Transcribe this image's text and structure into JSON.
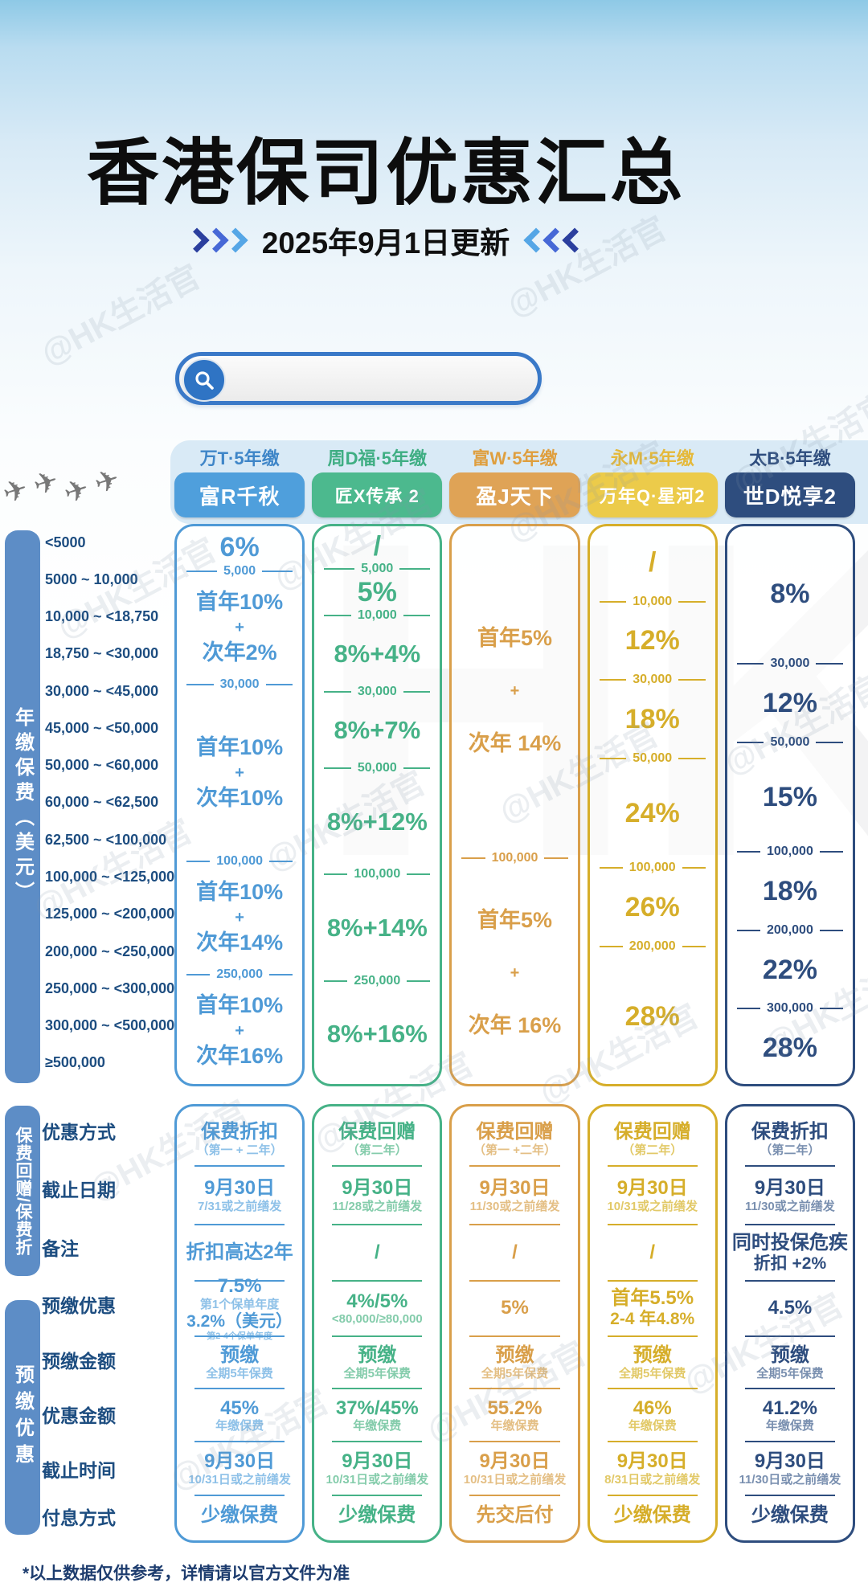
{
  "title": "香港保司优惠汇总",
  "subtitle": "2025年9月1日更新",
  "search": {
    "value": "",
    "placeholder": ""
  },
  "footer": "*以上数据仅供参考，详情请以官方文件为准",
  "watermark": "@HK生活官",
  "watermark_big": "HK",
  "icons": {
    "plane": "✈",
    "search": "magnifier"
  },
  "decor_colors": {
    "chevrons": [
      "#2b3f9e",
      "#4668d6",
      "#55a6e6"
    ],
    "search_border": "#3a79c8",
    "sidebar_bar": "#5d8dc6",
    "header_band": "#d9eaf6"
  },
  "sidebar": [
    {
      "label": "年缴保费（美元）"
    },
    {
      "label": "保费回赠/保费折"
    },
    {
      "label": "预缴优惠"
    }
  ],
  "premium_row_labels": [
    "<5000",
    "5000 ~ 10,000",
    "10,000 ~ <18,750",
    "18,750 ~ <30,000",
    "30,000 ~ <45,000",
    "45,000 ~ <50,000",
    "50,000 ~ <60,000",
    "60,000 ~ <62,500",
    "62,500 ~ <100,000",
    "100,000 ~ <125,000",
    "125,000 ~ <200,000",
    "200,000 ~ <250,000",
    "250,000 ~ <300,000",
    "300,000 ~ <500,000",
    "≥500,000"
  ],
  "detail_row_labels": [
    "优惠方式",
    "截止日期",
    "备注",
    "预缴优惠",
    "预缴金额",
    "优惠金额",
    "截止时间",
    "付息方式"
  ],
  "columns": [
    {
      "company": "万T·5年缴",
      "product": "富R千秋",
      "colors": {
        "company": "#3f86c8",
        "badge": "#4f9fdc",
        "accent": "#4f9ad6",
        "light": "#8ec1e8"
      },
      "premium_segments": [
        {
          "t": "v",
          "lines": [
            "6%"
          ],
          "f": 1
        },
        {
          "t": "d",
          "label": "5,000"
        },
        {
          "t": "v",
          "lines": [
            "首年10%",
            "+",
            "次年2%"
          ],
          "f": 3
        },
        {
          "t": "d",
          "label": "30,000"
        },
        {
          "t": "v",
          "lines": [
            "首年10%",
            "+",
            "次年10%"
          ],
          "f": 5
        },
        {
          "t": "d",
          "label": "100,000"
        },
        {
          "t": "v",
          "lines": [
            "首年10%",
            "+",
            "次年14%"
          ],
          "f": 3
        },
        {
          "t": "d",
          "label": "250,000"
        },
        {
          "t": "v",
          "lines": [
            "首年10%",
            "+",
            "次年16%"
          ],
          "f": 3
        }
      ],
      "details": [
        {
          "main": "保费折扣",
          "sub": "（第一 + 二年）"
        },
        {
          "main": "9月30日",
          "sub": "7/31或之前缮发"
        },
        {
          "main": "折扣高达2年"
        },
        {
          "main": "7.5%",
          "sub": "第1个保单年度",
          "main2": "3.2%（美元）",
          "sub2": "第2-4个保单年度"
        },
        {
          "main": "预缴",
          "sub": "全期5年保费"
        },
        {
          "main": "45%",
          "sub": "年缴保费"
        },
        {
          "main": "9月30日",
          "sub": "10/31日或之前缮发"
        },
        {
          "main": "少缴保费"
        }
      ]
    },
    {
      "company": "周D福·5年缴",
      "product": "匠X传承 2",
      "colors": {
        "company": "#3fae83",
        "badge": "#4cb98e",
        "accent": "#46b287",
        "light": "#84ccab"
      },
      "premium_segments": [
        {
          "t": "v",
          "lines": [
            "/"
          ],
          "f": 1
        },
        {
          "t": "d",
          "label": "5,000"
        },
        {
          "t": "v",
          "lines": [
            "5%"
          ],
          "f": 1
        },
        {
          "t": "d",
          "label": "10,000"
        },
        {
          "t": "v",
          "lines": [
            "8%+4%"
          ],
          "f": 2
        },
        {
          "t": "d",
          "label": "30,000"
        },
        {
          "t": "v",
          "lines": [
            "8%+7%"
          ],
          "f": 2
        },
        {
          "t": "d",
          "label": "50,000"
        },
        {
          "t": "v",
          "lines": [
            "8%+12%"
          ],
          "f": 3
        },
        {
          "t": "d",
          "label": "100,000"
        },
        {
          "t": "v",
          "lines": [
            "8%+14%"
          ],
          "f": 3
        },
        {
          "t": "d",
          "label": "250,000"
        },
        {
          "t": "v",
          "lines": [
            "8%+16%"
          ],
          "f": 3
        }
      ],
      "details": [
        {
          "main": "保费回赠",
          "sub": "（第二年）"
        },
        {
          "main": "9月30日",
          "sub": "11/28或之前缮发"
        },
        {
          "main": "/"
        },
        {
          "main": "4%/5%",
          "sub": "<80,000/≥80,000"
        },
        {
          "main": "预缴",
          "sub": "全期5年保费"
        },
        {
          "main": "37%/45%",
          "sub": "年缴保费"
        },
        {
          "main": "9月30日",
          "sub": "10/31日或之前缮发"
        },
        {
          "main": "少缴保费"
        }
      ]
    },
    {
      "company": "富W·5年缴",
      "product": "盈J天下",
      "colors": {
        "company": "#df9f3f",
        "badge": "#dfa356",
        "accent": "#d99f4a",
        "light": "#e4bf85"
      },
      "premium_segments": [
        {
          "t": "v",
          "lines": [
            "首年5%",
            "+",
            "次年 14%"
          ],
          "f": 9
        },
        {
          "t": "d",
          "label": "100,000"
        },
        {
          "t": "v",
          "lines": [
            "首年5%",
            "+",
            "次年 16%"
          ],
          "f": 6
        }
      ],
      "details": [
        {
          "main": "保费回赠",
          "sub": "（第一 +二年）"
        },
        {
          "main": "9月30日",
          "sub": "11/30或之前缮发"
        },
        {
          "main": "/"
        },
        {
          "main": "5%"
        },
        {
          "main": "预缴",
          "sub": "全期5年保费"
        },
        {
          "main": "55.2%",
          "sub": "年缴保费"
        },
        {
          "main": "9月30日",
          "sub": "10/31日或之前缮发"
        },
        {
          "main": "先交后付"
        }
      ]
    },
    {
      "company": "永M·5年缴",
      "product": "万年Q·星河2",
      "colors": {
        "company": "#e5b93a",
        "badge": "#eccb4a",
        "accent": "#d6ae2a",
        "light": "#e2c968"
      },
      "premium_segments": [
        {
          "t": "v",
          "lines": [
            "/"
          ],
          "f": 2
        },
        {
          "t": "d",
          "label": "10,000"
        },
        {
          "t": "v",
          "lines": [
            "12%"
          ],
          "f": 2
        },
        {
          "t": "d",
          "label": "30,000"
        },
        {
          "t": "v",
          "lines": [
            "18%"
          ],
          "f": 2
        },
        {
          "t": "d",
          "label": "50,000"
        },
        {
          "t": "v",
          "lines": [
            "24%"
          ],
          "f": 3
        },
        {
          "t": "d",
          "label": "100,000"
        },
        {
          "t": "v",
          "lines": [
            "26%"
          ],
          "f": 2
        },
        {
          "t": "d",
          "label": "200,000"
        },
        {
          "t": "v",
          "lines": [
            "28%"
          ],
          "f": 4
        }
      ],
      "details": [
        {
          "main": "保费回赠",
          "sub": "（第二年）"
        },
        {
          "main": "9月30日",
          "sub": "10/31或之前缮发"
        },
        {
          "main": "/"
        },
        {
          "main": "首年5.5%",
          "main2": "2-4 年4.8%"
        },
        {
          "main": "预缴",
          "sub": "全期5年保费"
        },
        {
          "main": "46%",
          "sub": "年缴保费"
        },
        {
          "main": "9月30日",
          "sub": "8/31日或之前缮发"
        },
        {
          "main": "少缴保费"
        }
      ]
    },
    {
      "company": "太B·5年缴",
      "product": "世D悦享2",
      "colors": {
        "company": "#2e4d7e",
        "badge": "#2e4d7e",
        "accent": "#2e4d7e",
        "light": "#7a90b0"
      },
      "premium_segments": [
        {
          "t": "v",
          "lines": [
            "8%"
          ],
          "f": 4
        },
        {
          "t": "d",
          "label": "30,000"
        },
        {
          "t": "v",
          "lines": [
            "12%"
          ],
          "f": 2
        },
        {
          "t": "d",
          "label": "50,000"
        },
        {
          "t": "v",
          "lines": [
            "15%"
          ],
          "f": 3
        },
        {
          "t": "d",
          "label": "100,000"
        },
        {
          "t": "v",
          "lines": [
            "18%"
          ],
          "f": 2
        },
        {
          "t": "d",
          "label": "200,000"
        },
        {
          "t": "v",
          "lines": [
            "22%"
          ],
          "f": 2
        },
        {
          "t": "d",
          "label": "300,000"
        },
        {
          "t": "v",
          "lines": [
            "28%"
          ],
          "f": 2
        }
      ],
      "details": [
        {
          "main": "保费折扣",
          "sub": "（第二年）"
        },
        {
          "main": "9月30日",
          "sub": "11/30或之前缮发"
        },
        {
          "main": "同时投保危疾",
          "main2": "折扣 +2%"
        },
        {
          "main": "4.5%"
        },
        {
          "main": "预缴",
          "sub": "全期5年保费"
        },
        {
          "main": "41.2%",
          "sub": "年缴保费"
        },
        {
          "main": "9月30日",
          "sub": "11/30日或之前缮发"
        },
        {
          "main": "少缴保费"
        }
      ]
    }
  ]
}
